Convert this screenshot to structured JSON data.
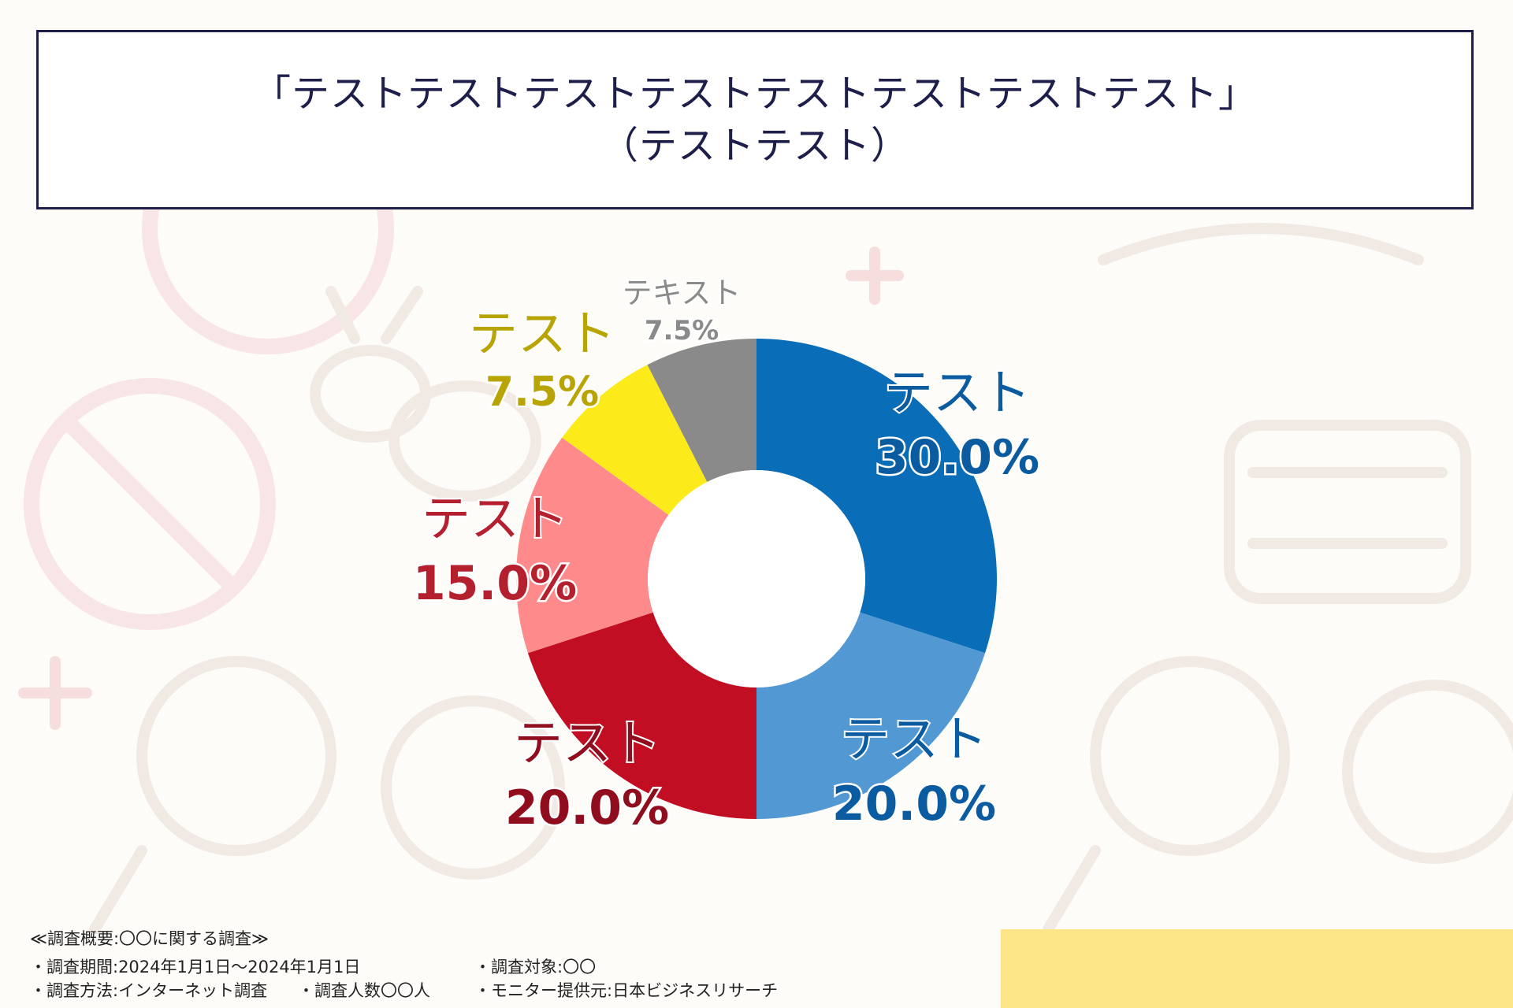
{
  "header": {
    "title_line1": "「テストテストテストテストテストテストテストテスト」",
    "title_line2": "（テストテスト）"
  },
  "chart_data": {
    "type": "pie",
    "variant": "donut",
    "slices": [
      {
        "label": "テスト",
        "value": 30.0,
        "value_label": "30.0%",
        "color": "#0a6db7",
        "label_color": "#0a5ba0"
      },
      {
        "label": "テスト",
        "value": 20.0,
        "value_label": "20.0%",
        "color": "#5298d3",
        "label_color": "#0a5ba0"
      },
      {
        "label": "テスト",
        "value": 20.0,
        "value_label": "20.0%",
        "color": "#c10e22",
        "label_color": "#8f0d1d"
      },
      {
        "label": "テスト",
        "value": 15.0,
        "value_label": "15.0%",
        "color": "#ff8a8c",
        "label_color": "#b5202f"
      },
      {
        "label": "テスト",
        "value": 7.5,
        "value_label": "7.5%",
        "color": "#fdea1b",
        "label_color": "#b8a405"
      },
      {
        "label": "テキスト",
        "value": 7.5,
        "value_label": "7.5%",
        "color": "#8a8a8a",
        "label_color": "#8a8a8a"
      }
    ]
  },
  "footer": {
    "heading": "≪調査概要:〇〇に関する調査≫",
    "period": "・調査期間:2024年1月1日～2024年1月1日",
    "target": "・調査対象:〇〇",
    "method": "・調査方法:インターネット調査",
    "count": "・調査人数〇〇人",
    "provider": "・モニター提供元:日本ビジネスリサーチ"
  }
}
